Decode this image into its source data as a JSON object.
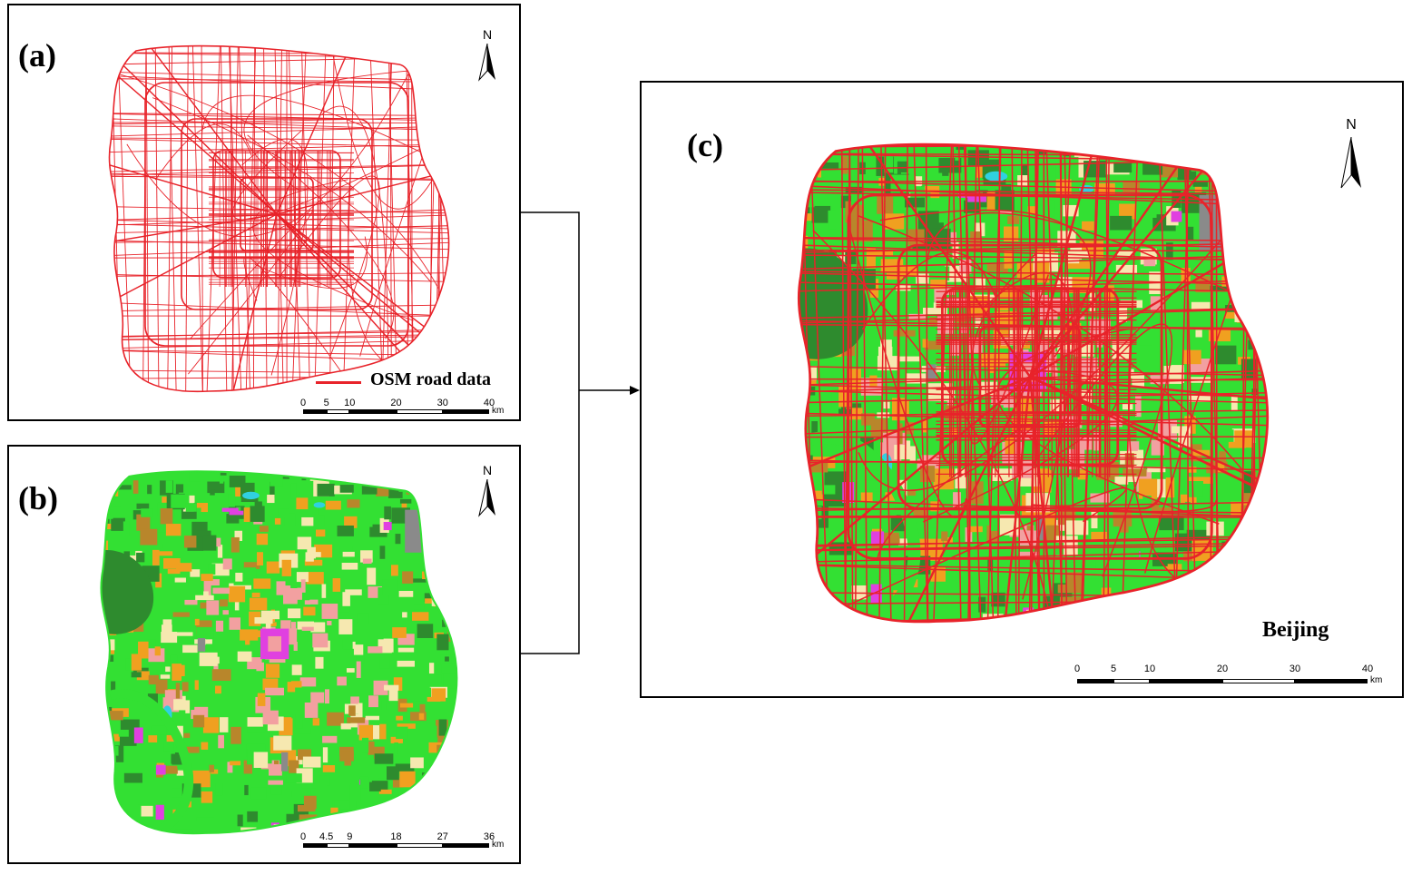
{
  "panels": {
    "a": {
      "label": "(a)",
      "legend": "OSM road data",
      "north": "N",
      "scale": {
        "ticks": [
          "0",
          "5",
          "10",
          "20",
          "30",
          "40"
        ],
        "unit": "km"
      }
    },
    "b": {
      "label": "(b)",
      "north": "N",
      "scale": {
        "ticks": [
          "0",
          "4.5",
          "9",
          "18",
          "27",
          "36"
        ],
        "unit": "km"
      }
    },
    "c": {
      "label": "(c)",
      "north": "N",
      "city": "Beijing",
      "scale": {
        "ticks": [
          "0",
          "5",
          "10",
          "20",
          "30",
          "40"
        ],
        "unit": "km"
      }
    }
  },
  "colors": {
    "road": "#e8232a",
    "forest": "#2e8b2e",
    "grass": "#33e033",
    "orange": "#f0a020",
    "pink": "#f2a0a0",
    "cream": "#f6e8b0",
    "magenta": "#e040e0",
    "gray": "#8a8a8a",
    "brown": "#b8862b",
    "cyan": "#30d0e0"
  }
}
